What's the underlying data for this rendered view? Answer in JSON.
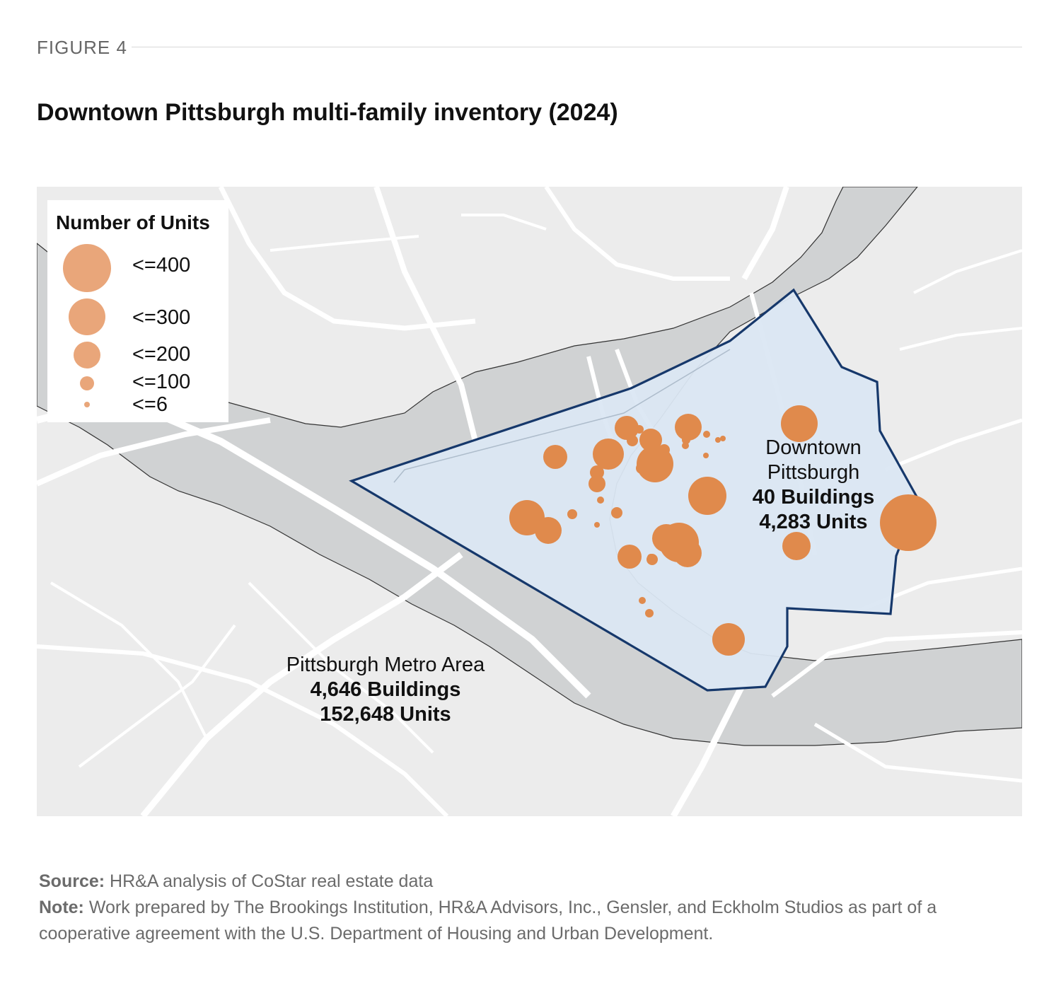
{
  "figure_label": "FIGURE 4",
  "title": "Downtown Pittsburgh multi-family inventory (2024)",
  "legend": {
    "title": "Number of Units",
    "items": [
      {
        "label": "<=400",
        "units": 400
      },
      {
        "label": "<=300",
        "units": 300
      },
      {
        "label": "<=200",
        "units": 200
      },
      {
        "label": "<=100",
        "units": 100
      },
      {
        "label": "<=6",
        "units": 6
      }
    ]
  },
  "downtown": {
    "name_line1": "Downtown",
    "name_line2": "Pittsburgh",
    "buildings": "40 Buildings",
    "units": "4,283 Units"
  },
  "metro": {
    "name": "Pittsburgh Metro Area",
    "buildings": "4,646 Buildings",
    "units": "152,648 Units"
  },
  "footer": {
    "source_label": "Source:",
    "source_text": " HR&A analysis of CoStar real estate data",
    "note_label": "Note:",
    "note_text": " Work prepared by The Brookings Institution, HR&A Advisors, Inc., Gensler, and Eckholm Studios as part of a cooperative agreement with the U.S. Department of Housing and Urban Development."
  },
  "colors": {
    "marker": "#e08a4c",
    "legend_marker": "#e9a67a",
    "boundary": "#16386b",
    "downtown_fill": "#dbe7f3",
    "water": "#d0d2d3",
    "land": "#ececec",
    "roads": "#ffffff"
  }
}
